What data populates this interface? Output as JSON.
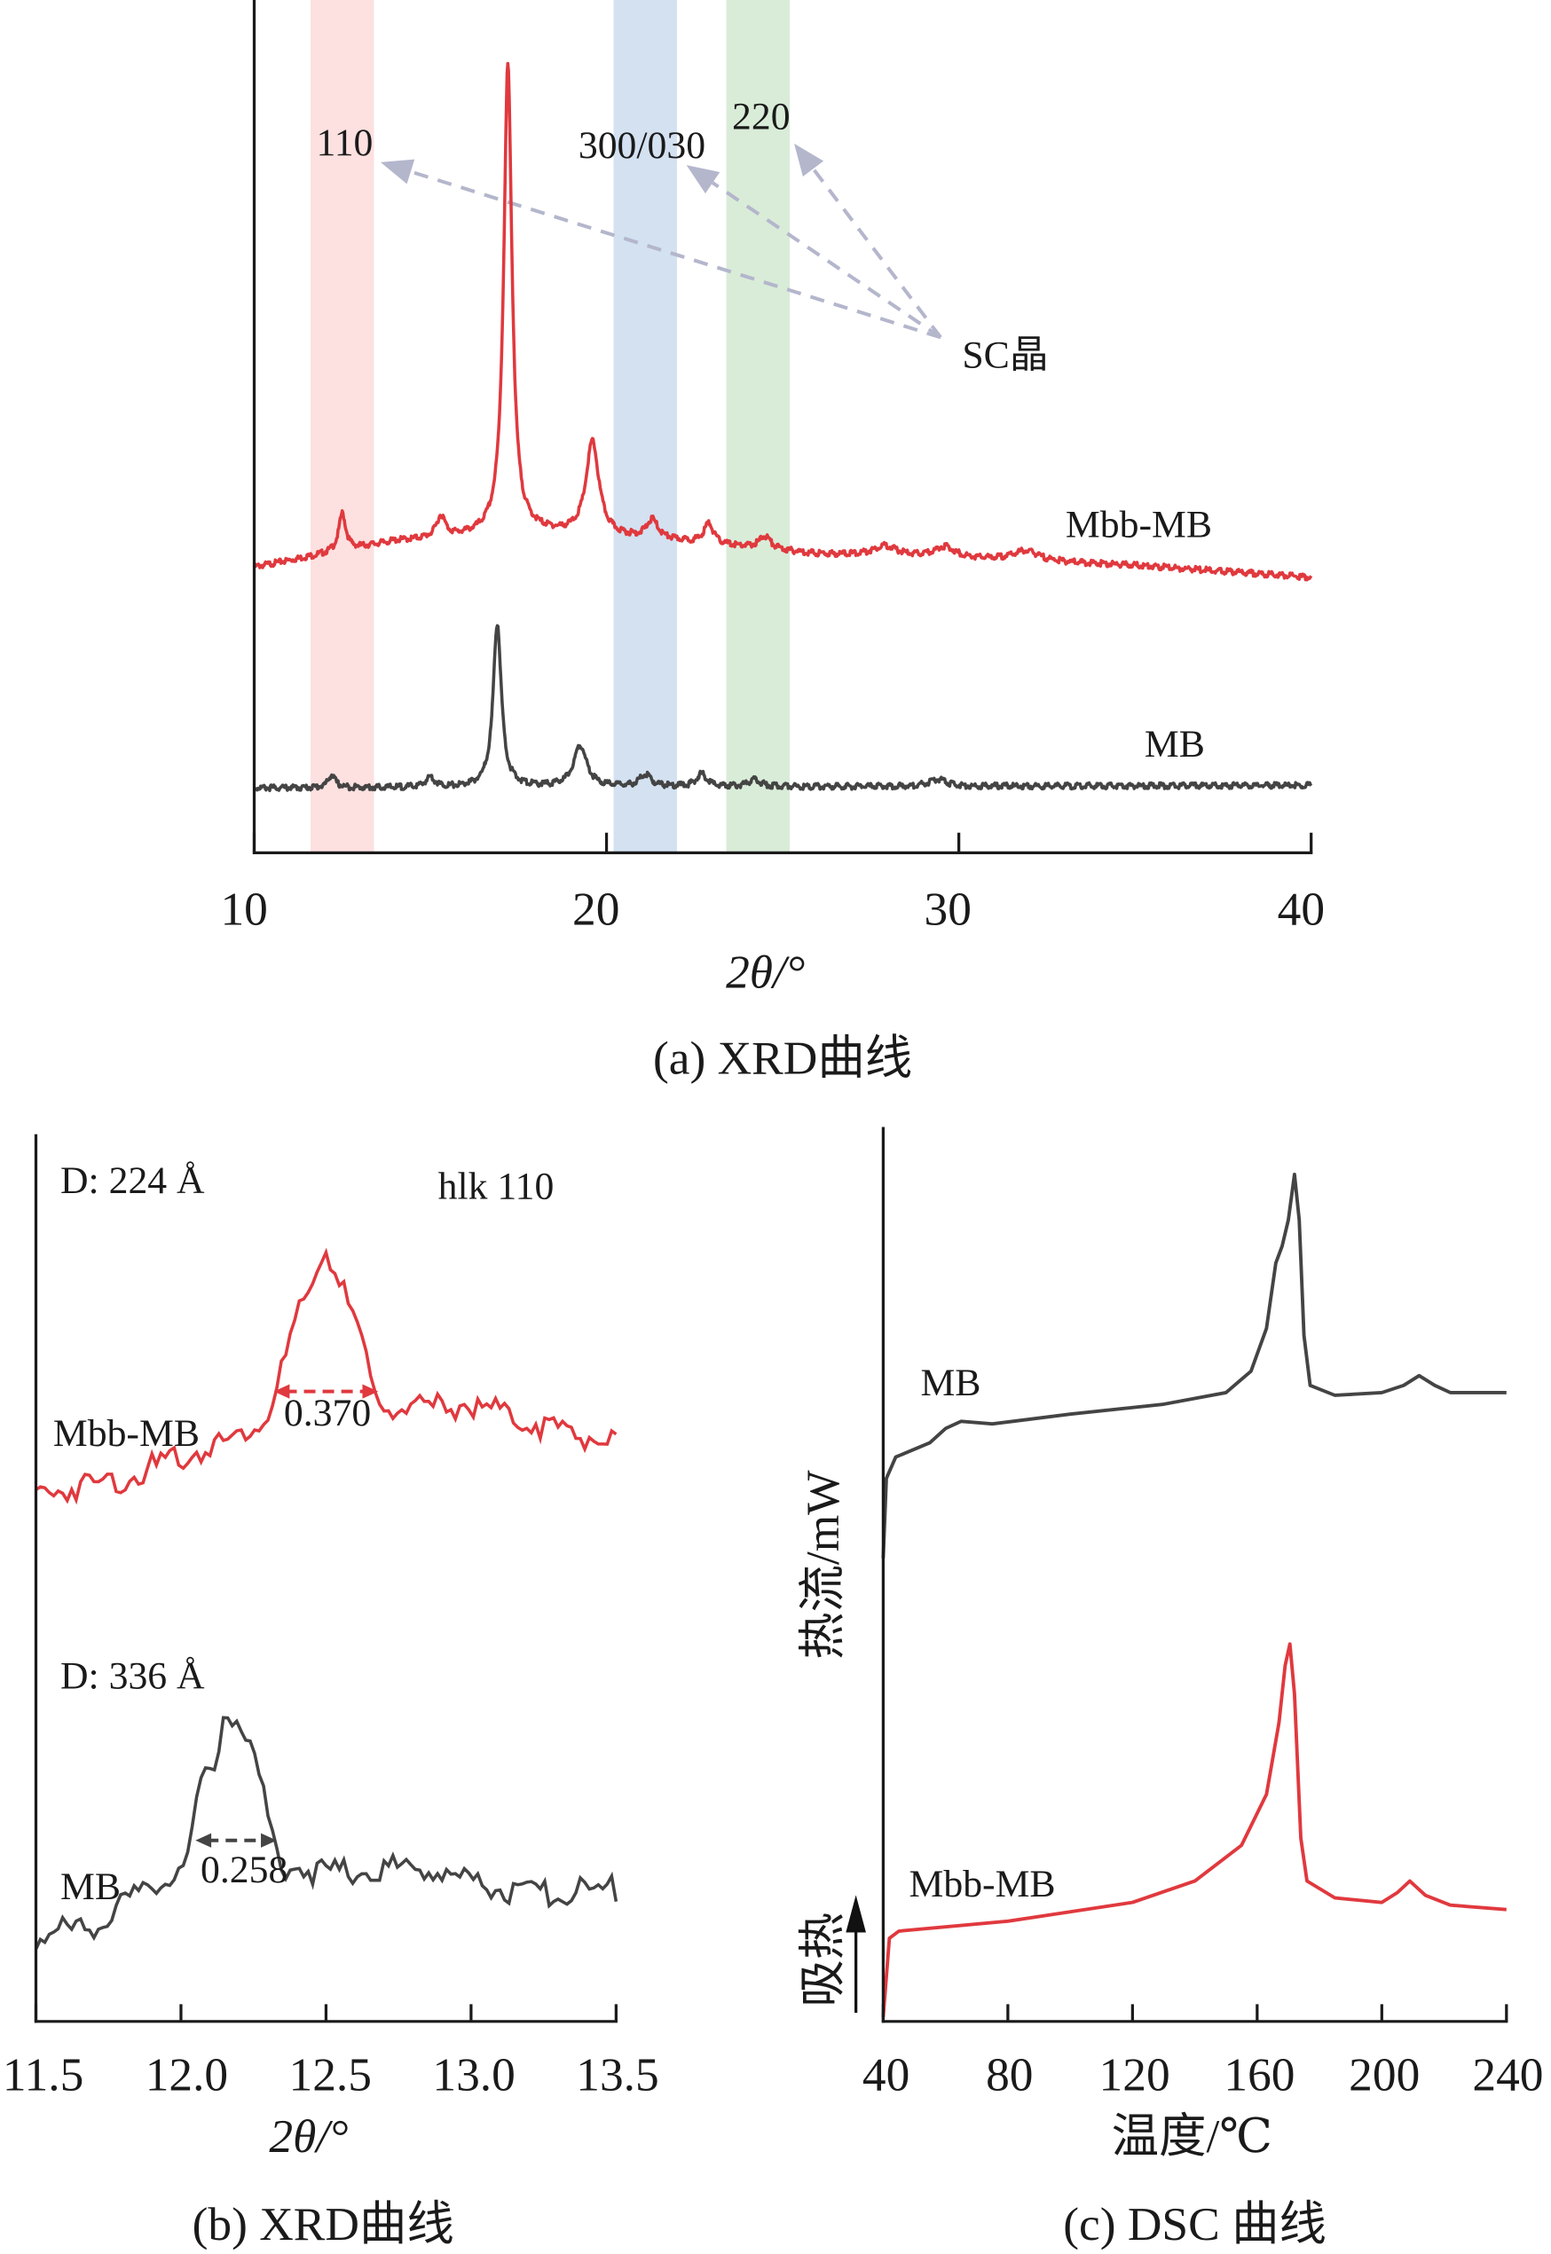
{
  "colors": {
    "mbb_mb": "#e0393e",
    "mb": "#444444",
    "band_110": "#fde0e0",
    "band_300": "#d3e1f1",
    "band_220": "#d9ecd8",
    "arrow": "#b4b6cc"
  },
  "chart_data": [
    {
      "id": "a",
      "type": "line",
      "title": "(a) XRD曲线",
      "xlabel": "2θ/°",
      "ylabel": "",
      "xlim": [
        10,
        40
      ],
      "ylim": [
        0,
        100
      ],
      "xticks": [
        "10",
        "20",
        "30",
        "40"
      ],
      "bands": [
        {
          "label": "110",
          "range": [
            11.6,
            13.4
          ],
          "color": "#fde0e0"
        },
        {
          "label": "300/030",
          "range": [
            20.2,
            22.0
          ],
          "color": "#d3e1f1"
        },
        {
          "label": "220",
          "range": [
            23.4,
            25.2
          ],
          "color": "#d9ecd8"
        }
      ],
      "annotation": "SC晶",
      "series": [
        {
          "name": "Mbb-MB",
          "color": "#e0393e",
          "baseline": [
            [
              10,
              33.5
            ],
            [
              12,
              35
            ],
            [
              14,
              36.5
            ],
            [
              18,
              37.5
            ],
            [
              22,
              36.5
            ],
            [
              26,
              35
            ],
            [
              30,
              34.5
            ],
            [
              35,
              33.7
            ],
            [
              40,
              32.3
            ]
          ],
          "peaks": [
            [
              12.5,
              4.4,
              0.12
            ],
            [
              15.3,
              2.5,
              0.15
            ],
            [
              17.2,
              55,
              0.14
            ],
            [
              19.6,
              11,
              0.22
            ],
            [
              21.3,
              2.2,
              0.2
            ],
            [
              22.9,
              2.4,
              0.16
            ],
            [
              24.5,
              1.5,
              0.2
            ],
            [
              27.9,
              1.2,
              0.4
            ],
            [
              29.6,
              1.3,
              0.35
            ],
            [
              31.9,
              1.2,
              0.45
            ]
          ]
        },
        {
          "name": "MB",
          "color": "#444444",
          "baseline": [
            [
              10,
              7.6
            ],
            [
              20,
              7.7
            ],
            [
              30,
              7.8
            ],
            [
              40,
              7.9
            ]
          ],
          "peaks": [
            [
              12.2,
              1.5,
              0.12
            ],
            [
              15.0,
              1.2,
              0.15
            ],
            [
              16.9,
              19.2,
              0.14
            ],
            [
              19.25,
              4.9,
              0.22
            ],
            [
              21.1,
              1.4,
              0.2
            ],
            [
              22.7,
              1.5,
              0.18
            ],
            [
              24.2,
              0.8,
              0.2
            ],
            [
              29.4,
              0.8,
              0.3
            ]
          ]
        }
      ],
      "peak_labels": [
        "110",
        "300/030",
        "220"
      ],
      "series_labels": [
        "Mbb-MB",
        "MB"
      ]
    },
    {
      "id": "b",
      "type": "line",
      "title": "(b) XRD曲线",
      "xlabel": "2θ/°",
      "xlim": [
        11.5,
        13.5
      ],
      "ylim": [
        0,
        100
      ],
      "xticks": [
        "11.5",
        "12.0",
        "12.5",
        "13.0",
        "13.5"
      ],
      "annotations": {
        "d_mbb": "D: 224 Å",
        "hkl": "hlk 110",
        "d_mb": "D: 336 Å",
        "fwhm_mbb": "0.370",
        "fwhm_mb": "0.258"
      },
      "fwhm": [
        {
          "series": "Mbb-MB",
          "range": [
            12.32,
            12.68
          ],
          "y": 71
        },
        {
          "series": "MB",
          "range": [
            12.05,
            12.33
          ],
          "y": 20.4
        }
      ],
      "series": [
        {
          "name": "Mbb-MB",
          "color": "#e0393e",
          "points": [
            [
              11.5,
              59.5
            ],
            [
              11.8,
              61.2
            ],
            [
              12.0,
              63.6
            ],
            [
              12.2,
              66
            ],
            [
              12.3,
              68.4
            ],
            [
              12.4,
              79
            ],
            [
              12.5,
              87
            ],
            [
              12.6,
              79
            ],
            [
              12.67,
              70
            ],
            [
              12.8,
              69
            ],
            [
              13.0,
              69.6
            ],
            [
              13.2,
              67.6
            ],
            [
              13.5,
              65.2
            ]
          ]
        },
        {
          "name": "MB",
          "color": "#444444",
          "points": [
            [
              11.5,
              9.4
            ],
            [
              11.7,
              11
            ],
            [
              11.9,
              15
            ],
            [
              12.0,
              17.5
            ],
            [
              12.03,
              17.8
            ],
            [
              12.04,
              21.5
            ],
            [
              12.07,
              27.2
            ],
            [
              12.12,
              28.8
            ],
            [
              12.15,
              35.8
            ],
            [
              12.2,
              33.7
            ],
            [
              12.25,
              30.4
            ],
            [
              12.3,
              23.1
            ],
            [
              12.34,
              17.8
            ],
            [
              12.5,
              16.7
            ],
            [
              12.8,
              17.5
            ],
            [
              13.0,
              15.9
            ],
            [
              13.2,
              14.2
            ],
            [
              13.5,
              15
            ]
          ]
        }
      ]
    },
    {
      "id": "c",
      "type": "line",
      "title": "(c) DSC 曲线",
      "xlabel": "温度/℃",
      "ylabel": "热流/mW",
      "endo_label": "吸热",
      "xlim": [
        40,
        240
      ],
      "ylim": [
        0,
        100
      ],
      "xticks": [
        "40",
        "80",
        "120",
        "160",
        "200",
        "240"
      ],
      "series": [
        {
          "name": "MB",
          "color": "#444444",
          "points": [
            [
              40,
              51.8
            ],
            [
              41,
              60.7
            ],
            [
              44,
              63.1
            ],
            [
              55,
              64.7
            ],
            [
              60,
              66.3
            ],
            [
              65,
              67.1
            ],
            [
              75,
              66.8
            ],
            [
              100,
              67.9
            ],
            [
              130,
              69
            ],
            [
              150,
              70.3
            ],
            [
              158,
              72.7
            ],
            [
              163,
              77.5
            ],
            [
              166,
              84.8
            ],
            [
              168,
              86.7
            ],
            [
              170,
              89.6
            ],
            [
              172,
              94.7
            ],
            [
              173.5,
              89.6
            ],
            [
              175,
              76.7
            ],
            [
              177,
              71.1
            ],
            [
              185,
              70
            ],
            [
              200,
              70.3
            ],
            [
              207,
              71.1
            ],
            [
              212,
              72.2
            ],
            [
              217,
              71.1
            ],
            [
              222,
              70.3
            ],
            [
              240,
              70.3
            ]
          ]
        },
        {
          "name": "Mbb-MB",
          "color": "#e0393e",
          "points": [
            [
              40,
              0.5
            ],
            [
              42,
              9.3
            ],
            [
              45,
              10.1
            ],
            [
              80,
              11.2
            ],
            [
              120,
              13.3
            ],
            [
              140,
              15.7
            ],
            [
              155,
              19.7
            ],
            [
              163,
              25.4
            ],
            [
              167,
              33.4
            ],
            [
              169,
              39.8
            ],
            [
              170.5,
              42.2
            ],
            [
              172,
              36.6
            ],
            [
              174,
              20.5
            ],
            [
              176,
              15.7
            ],
            [
              185,
              13.8
            ],
            [
              200,
              13.3
            ],
            [
              205,
              14.4
            ],
            [
              209,
              15.7
            ],
            [
              214,
              14.1
            ],
            [
              222,
              13
            ],
            [
              240,
              12.5
            ]
          ]
        }
      ]
    }
  ]
}
